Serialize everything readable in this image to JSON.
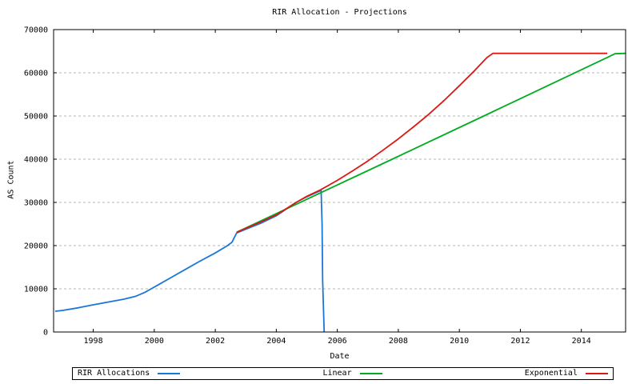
{
  "chart_data": {
    "type": "line",
    "title": "RIR Allocation - Projections",
    "xlabel": "Date",
    "ylabel": "AS Count",
    "x_range": [
      1996.7,
      2015.45
    ],
    "y_range": [
      0,
      70000
    ],
    "x_ticks": [
      1998,
      2000,
      2002,
      2004,
      2006,
      2008,
      2010,
      2012,
      2014
    ],
    "y_ticks": [
      0,
      10000,
      20000,
      30000,
      40000,
      50000,
      60000,
      70000
    ],
    "grid": "horizontal-dashed",
    "legend_position": "bottom",
    "grid_color": "#b4b4b4",
    "axis_color": "#000000",
    "series": [
      {
        "name": "RIR Allocations",
        "color": "#1b76d8",
        "points": [
          [
            1996.75,
            4800
          ],
          [
            1997.0,
            5000
          ],
          [
            1997.5,
            5600
          ],
          [
            1998.0,
            6300
          ],
          [
            1998.5,
            6950
          ],
          [
            1999.0,
            7600
          ],
          [
            1999.4,
            8300
          ],
          [
            1999.7,
            9200
          ],
          [
            1999.9,
            10000
          ],
          [
            2000.1,
            10800
          ],
          [
            2000.5,
            12400
          ],
          [
            2001.0,
            14400
          ],
          [
            2001.5,
            16400
          ],
          [
            2002.0,
            18300
          ],
          [
            2002.4,
            20000
          ],
          [
            2002.55,
            20800
          ],
          [
            2002.62,
            21800
          ],
          [
            2002.7,
            22900
          ],
          [
            2002.8,
            23200
          ],
          [
            2003.0,
            23800
          ],
          [
            2003.5,
            25200
          ],
          [
            2004.0,
            26900
          ],
          [
            2004.65,
            30000
          ],
          [
            2005.0,
            31300
          ],
          [
            2005.47,
            32800
          ],
          [
            2005.5,
            25000
          ],
          [
            2005.52,
            12000
          ],
          [
            2005.57,
            0
          ]
        ]
      },
      {
        "name": "Linear",
        "color": "#00ac20",
        "points": [
          [
            2002.7,
            23100
          ],
          [
            2007.8,
            40000
          ],
          [
            2010.8,
            50000
          ],
          [
            2014.0,
            60700
          ],
          [
            2015.0,
            64050
          ],
          [
            2015.1,
            64400
          ],
          [
            2015.44,
            64500
          ]
        ]
      },
      {
        "name": "Exponential",
        "color": "#dc1812",
        "points": [
          [
            2002.7,
            23100
          ],
          [
            2003.0,
            24000
          ],
          [
            2003.5,
            25500
          ],
          [
            2004.0,
            27100
          ],
          [
            2004.65,
            30000
          ],
          [
            2005.0,
            31400
          ],
          [
            2005.45,
            32900
          ],
          [
            2006.0,
            35100
          ],
          [
            2006.5,
            37300
          ],
          [
            2007.0,
            39600
          ],
          [
            2007.5,
            42100
          ],
          [
            2008.0,
            44700
          ],
          [
            2008.5,
            47500
          ],
          [
            2009.0,
            50400
          ],
          [
            2009.5,
            53600
          ],
          [
            2010.0,
            57000
          ],
          [
            2010.5,
            60500
          ],
          [
            2010.9,
            63500
          ],
          [
            2011.1,
            64500
          ],
          [
            2014.85,
            64500
          ]
        ]
      }
    ]
  }
}
